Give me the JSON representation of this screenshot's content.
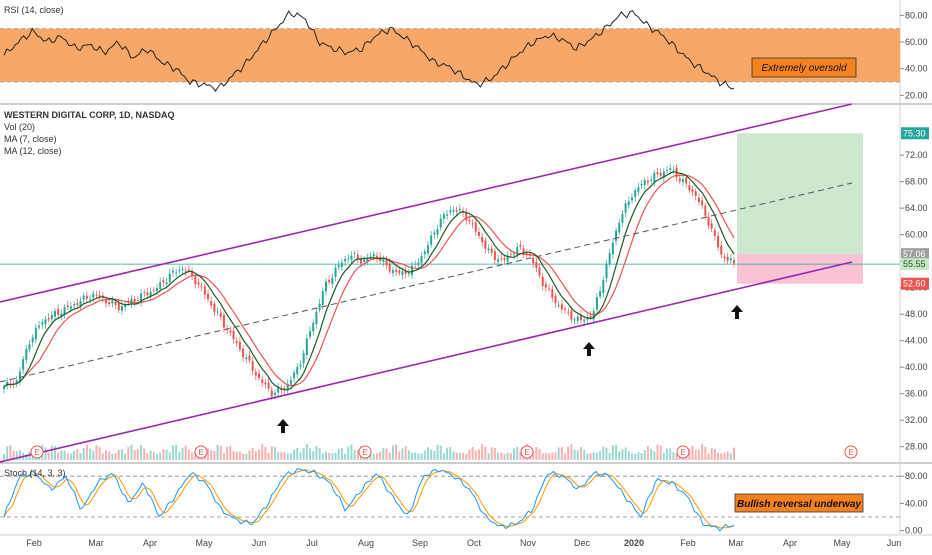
{
  "colors": {
    "up": "#26a69a",
    "down": "#ef5350",
    "channel": "#9c27b0",
    "ma_fast": "#1b5e20",
    "ma_slow": "#ef5350",
    "rsi_band": "#f7a868",
    "stoch_k": "#2196f3",
    "stoch_d": "#ff9800",
    "target_zone": "#c8e6c9",
    "stop_zone": "#f8bbd0",
    "last_price": "#26a69a"
  },
  "icons": {
    "arrow": "up-arrow-icon",
    "earnings": "earnings-e-icon"
  },
  "header": {
    "rsi_label": "RSI (14, close)",
    "main_title": "WESTERN DIGITAL CORP, 1D, NASDAQ",
    "vol_label": "Vol (20)",
    "ma7_label": "MA (7, close)",
    "ma12_label": "MA (12, close)",
    "stoch_label": "Stoch (14, 3, 3)"
  },
  "annotations": {
    "rsi_note": "Extremely oversold",
    "stoch_note": "Bullish reversal underway",
    "earnings_marker": "E"
  },
  "price_badges": {
    "target": "75.30",
    "entry": "57.06",
    "last": "55.55",
    "stop": "52.60"
  },
  "chart_data": [
    {
      "type": "line",
      "panel": "RSI",
      "title": "RSI (14, close)",
      "ylim": [
        15,
        90
      ],
      "y_ticks": [
        "80.00",
        "60.00",
        "40.00",
        "20.00"
      ],
      "y_tick_values": [
        80,
        60,
        40,
        20
      ],
      "band": [
        30,
        70
      ],
      "series": [
        {
          "values": [
            50,
            60,
            68,
            60,
            64,
            55,
            58,
            52,
            60,
            48,
            55,
            45,
            40,
            30,
            28,
            25,
            35,
            45,
            58,
            70,
            82,
            78,
            60,
            55,
            52,
            55,
            65,
            70,
            63,
            55,
            45,
            42,
            35,
            28,
            32,
            42,
            52,
            60,
            65,
            62,
            55,
            62,
            70,
            80,
            82,
            72,
            65,
            55,
            45,
            38,
            30,
            25
          ]
        }
      ]
    },
    {
      "type": "line",
      "panel": "price",
      "title": "WESTERN DIGITAL CORP, 1D, NASDAQ",
      "ylim": [
        26,
        77
      ],
      "y_ticks": [
        "72.00",
        "68.00",
        "64.00",
        "60.00",
        "56.00",
        "52.00",
        "48.00",
        "44.00",
        "40.00",
        "36.00",
        "32.00",
        "28.00"
      ],
      "y_tick_values": [
        72,
        68,
        64,
        60,
        56,
        52,
        48,
        44,
        40,
        36,
        32,
        28
      ],
      "x_ticks": [
        "Feb",
        "Mar",
        "Apr",
        "May",
        "Jun",
        "Jul",
        "Aug",
        "Sep",
        "Oct",
        "Nov",
        "Dec",
        "2020",
        "Feb",
        "Mar",
        "Apr",
        "May",
        "Jun"
      ],
      "series": [
        {
          "values": [
            37,
            38,
            44,
            47,
            48,
            49,
            50,
            51,
            50,
            49,
            50,
            51,
            52,
            54,
            55,
            53,
            50,
            47,
            44,
            41,
            38,
            36,
            37,
            40,
            46,
            52,
            55,
            57,
            56,
            57,
            55,
            54,
            55,
            58,
            62,
            64,
            63,
            60,
            57,
            56,
            58,
            57,
            53,
            50,
            48,
            47,
            48,
            55,
            62,
            66,
            68,
            69,
            70,
            68,
            66,
            62,
            57,
            55.55
          ]
        }
      ]
    },
    {
      "type": "line",
      "panel": "stochastic",
      "title": "Stoch (14, 3, 3)",
      "ylim": [
        -5,
        95
      ],
      "y_ticks": [
        "80.00",
        "40.00",
        "0.00"
      ],
      "y_tick_values": [
        80,
        40,
        0
      ],
      "band": [
        20,
        80
      ],
      "series": [
        {
          "values": [
            20,
            80,
            85,
            60,
            80,
            30,
            70,
            85,
            40,
            70,
            20,
            50,
            85,
            70,
            30,
            15,
            10,
            40,
            80,
            90,
            85,
            70,
            30,
            60,
            85,
            50,
            20,
            80,
            90,
            80,
            60,
            20,
            5,
            10,
            30,
            85,
            80,
            60,
            85,
            80,
            50,
            20,
            75,
            70,
            50,
            10,
            3,
            8
          ]
        }
      ]
    }
  ]
}
